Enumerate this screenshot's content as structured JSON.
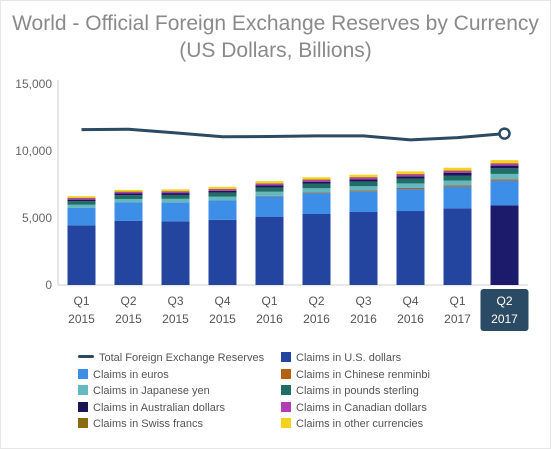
{
  "title_line1": "World - Official Foreign Exchange Reserves by Currency",
  "title_line2": "(US Dollars, Billions)",
  "chart_data": {
    "type": "bar",
    "stacked": true,
    "categories": [
      [
        "Q1",
        "2015"
      ],
      [
        "Q2",
        "2015"
      ],
      [
        "Q3",
        "2015"
      ],
      [
        "Q4",
        "2015"
      ],
      [
        "Q1",
        "2016"
      ],
      [
        "Q2",
        "2016"
      ],
      [
        "Q3",
        "2016"
      ],
      [
        "Q4",
        "2016"
      ],
      [
        "Q1",
        "2017"
      ],
      [
        "Q2",
        "2017"
      ]
    ],
    "highlighted_category": 9,
    "ylim": [
      0,
      15000
    ],
    "yticks": [
      0,
      5000,
      10000,
      15000
    ],
    "ytick_labels": [
      "0",
      "5,000",
      "10,000",
      "15,000"
    ],
    "grid": false,
    "legend_position": "bottom",
    "line_series": {
      "name": "Total Foreign Exchange Reserves",
      "color": "#2b4a63",
      "values": [
        11600,
        11620,
        11350,
        11060,
        11080,
        11130,
        11130,
        10830,
        11000,
        11300
      ]
    },
    "series": [
      {
        "name": "Claims in U.S. dollars",
        "color": "#23449f",
        "values": [
          4450,
          4780,
          4750,
          4860,
          5100,
          5300,
          5450,
          5520,
          5720,
          5940
        ]
      },
      {
        "name": "Claims in euros",
        "color": "#3d8ee6",
        "values": [
          1300,
          1380,
          1400,
          1450,
          1520,
          1560,
          1540,
          1640,
          1620,
          1850
        ]
      },
      {
        "name": "Claims in Chinese renminbi",
        "color": "#b55f10",
        "values": [
          0,
          0,
          0,
          0,
          40,
          50,
          60,
          80,
          90,
          100
        ]
      },
      {
        "name": "Claims in Japanese yen",
        "color": "#66b8c0",
        "values": [
          240,
          260,
          280,
          280,
          300,
          310,
          320,
          340,
          360,
          400
        ]
      },
      {
        "name": "Claims in pounds sterling",
        "color": "#1e6e66",
        "values": [
          260,
          280,
          290,
          300,
          320,
          330,
          340,
          350,
          380,
          420
        ]
      },
      {
        "name": "Claims in Australian dollars",
        "color": "#1a1656",
        "values": [
          120,
          130,
          140,
          140,
          150,
          160,
          170,
          180,
          190,
          200
        ]
      },
      {
        "name": "Claims in Canadian dollars",
        "color": "#b23db4",
        "values": [
          120,
          120,
          120,
          130,
          140,
          140,
          150,
          150,
          160,
          160
        ]
      },
      {
        "name": "Claims in Swiss francs",
        "color": "#8a6a12",
        "values": [
          20,
          20,
          20,
          20,
          20,
          20,
          20,
          20,
          20,
          20
        ]
      },
      {
        "name": "Claims in other currencies",
        "color": "#f5d21e",
        "values": [
          120,
          130,
          140,
          150,
          160,
          170,
          180,
          200,
          210,
          230
        ]
      }
    ]
  }
}
